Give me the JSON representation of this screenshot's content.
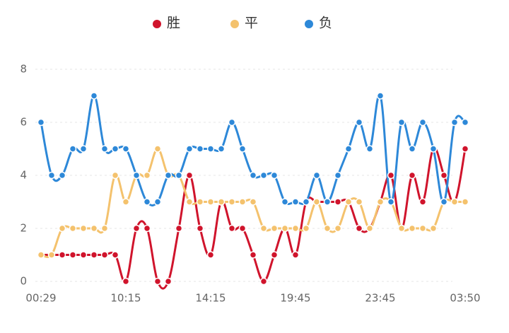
{
  "chart_data": {
    "type": "line",
    "categories": [
      "00:29",
      null,
      null,
      null,
      null,
      null,
      null,
      null,
      "10:15",
      null,
      null,
      null,
      null,
      null,
      null,
      null,
      "14:15",
      null,
      null,
      null,
      null,
      null,
      null,
      null,
      "19:45",
      null,
      null,
      null,
      null,
      null,
      null,
      null,
      "23:45",
      null,
      null,
      null,
      null,
      null,
      null,
      null,
      "03:50"
    ],
    "series": [
      {
        "name": "胜",
        "color": "#d0142c",
        "values": [
          1,
          1,
          1,
          1,
          1,
          1,
          1,
          1,
          0,
          2,
          2,
          0,
          0,
          2,
          4,
          2,
          1,
          3,
          2,
          2,
          1,
          0,
          1,
          2,
          1,
          3,
          3,
          3,
          3,
          3,
          2,
          2,
          3,
          4,
          2,
          4,
          3,
          5,
          4,
          3,
          5
        ]
      },
      {
        "name": "平",
        "color": "#f4c26d",
        "values": [
          1,
          1,
          2,
          2,
          2,
          2,
          2,
          4,
          3,
          4,
          4,
          5,
          4,
          4,
          3,
          3,
          3,
          3,
          3,
          3,
          3,
          2,
          2,
          2,
          2,
          2,
          3,
          2,
          2,
          3,
          3,
          2,
          3,
          3,
          2,
          2,
          2,
          2,
          3,
          3,
          3
        ]
      },
      {
        "name": "负",
        "color": "#2d88d8",
        "values": [
          6,
          4,
          4,
          5,
          5,
          7,
          5,
          5,
          5,
          4,
          3,
          3,
          4,
          4,
          5,
          5,
          5,
          5,
          6,
          5,
          4,
          4,
          4,
          3,
          3,
          3,
          4,
          3,
          4,
          5,
          6,
          5,
          7,
          3,
          6,
          5,
          6,
          5,
          3,
          6,
          6
        ]
      }
    ],
    "ylim": [
      0,
      8
    ],
    "yticks": [
      0,
      2,
      4,
      6,
      8
    ],
    "grid": true,
    "legend": "top"
  }
}
